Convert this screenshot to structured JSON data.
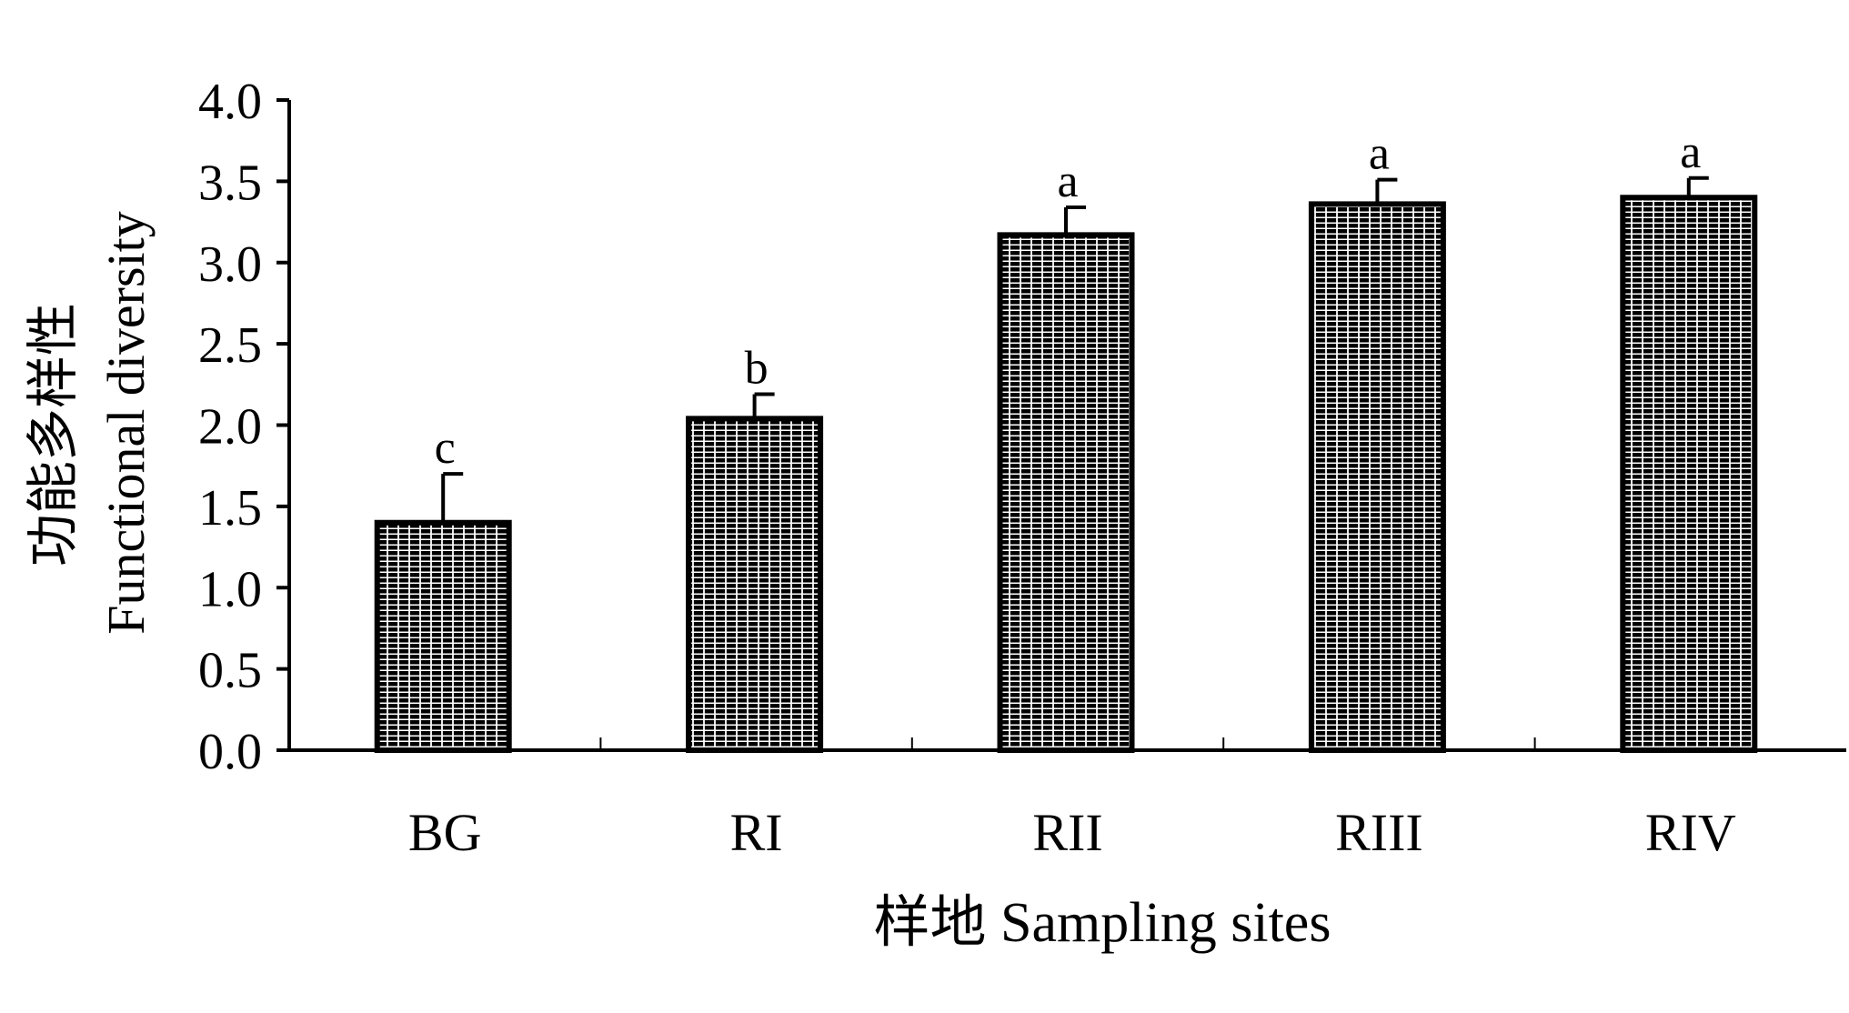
{
  "chart_data": {
    "type": "bar",
    "xlabel": "样地 Sampling sites",
    "ylabel_cn": "功能多样性",
    "ylabel_en": "Functional diversity",
    "ylim": [
      0,
      4.0
    ],
    "yticks": [
      "0.0",
      "0.5",
      "1.0",
      "1.5",
      "2.0",
      "2.5",
      "3.0",
      "3.5",
      "4.0"
    ],
    "grid": false,
    "bar_fill": "horizontal-stripes",
    "bar_color": "#000000",
    "categories": [
      "BG",
      "RI",
      "RII",
      "RIII",
      "RIV"
    ],
    "values": [
      1.4,
      2.04,
      3.17,
      3.36,
      3.4
    ],
    "errors": [
      0.3,
      0.15,
      0.17,
      0.15,
      0.12
    ],
    "significance_letters": [
      "c",
      "b",
      "a",
      "a",
      "a"
    ]
  }
}
